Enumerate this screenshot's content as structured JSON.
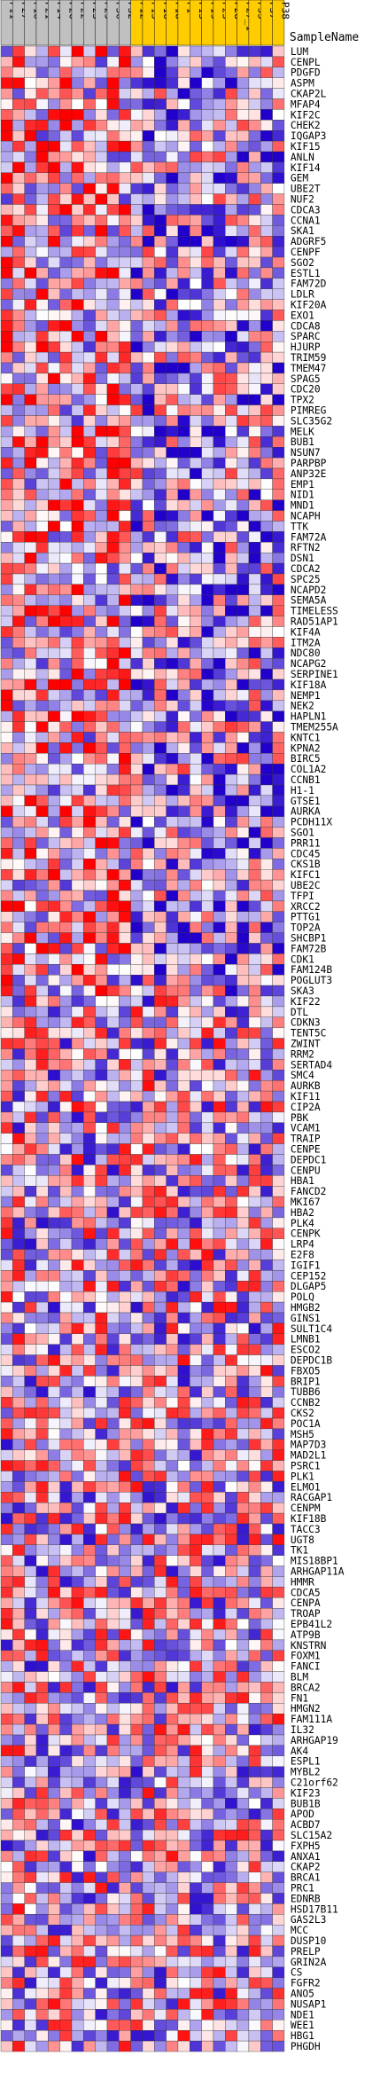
{
  "chart_data": {
    "type": "heatmap",
    "row_header_label": "SampleName",
    "columns": [
      {
        "name": "P11",
        "group": "group-1"
      },
      {
        "name": "P27",
        "group": "group-1"
      },
      {
        "name": "P10",
        "group": "group-1"
      },
      {
        "name": "P21",
        "group": "group-1"
      },
      {
        "name": "P14",
        "group": "group-1"
      },
      {
        "name": "P20",
        "group": "group-1"
      },
      {
        "name": "P22",
        "group": "group-1"
      },
      {
        "name": "P23",
        "group": "group-1"
      },
      {
        "name": "P29",
        "group": "group-1"
      },
      {
        "name": "P30",
        "group": "group-1"
      },
      {
        "name": "P32",
        "group": "group-1"
      },
      {
        "name": "P12",
        "group": "group-2"
      },
      {
        "name": "P15",
        "group": "group-2"
      },
      {
        "name": "P16",
        "group": "group-2"
      },
      {
        "name": "P18",
        "group": "group-2"
      },
      {
        "name": "P1",
        "group": "group-2"
      },
      {
        "name": "P13",
        "group": "group-2"
      },
      {
        "name": "P19",
        "group": "group-2"
      },
      {
        "name": "P25",
        "group": "group-2"
      },
      {
        "name": "P28",
        "group": "group-2"
      },
      {
        "name": "P27_1",
        "group": "group-2"
      },
      {
        "name": "P35",
        "group": "group-2"
      },
      {
        "name": "P37",
        "group": "group-2"
      },
      {
        "name": "P38",
        "group": "group-2"
      }
    ],
    "group_colors": {
      "group-1": "#c0c0c0",
      "group-2": "#ffcc00"
    },
    "color_scale": {
      "low": "#2200cc",
      "mid": "#ffffff",
      "high": "#ff0000",
      "range": [
        -1,
        1
      ]
    },
    "rows": [
      "LUM",
      "CENPL",
      "PDGFD",
      "ASPM",
      "CKAP2L",
      "MFAP4",
      "KIF2C",
      "CHEK2",
      "IQGAP3",
      "KIF15",
      "ANLN",
      "KIF14",
      "GEM",
      "UBE2T",
      "NUF2",
      "CDCA3",
      "CCNA1",
      "SKA1",
      "ADGRF5",
      "CENPF",
      "SGO2",
      "ESTL1",
      "FAM72D",
      "LDLR",
      "KIF20A",
      "EXO1",
      "CDCA8",
      "SPARC",
      "HJURP",
      "TRIM59",
      "TMEM47",
      "SPAG5",
      "CDC20",
      "TPX2",
      "PIMREG",
      "SLC35G2",
      "MELK",
      "BUB1",
      "NSUN7",
      "PARPBP",
      "ANP32E",
      "EMP1",
      "NID1",
      "MND1",
      "NCAPH",
      "TTK",
      "FAM72A",
      "RFTN2",
      "DSN1",
      "CDCA2",
      "SPC25",
      "NCAPD2",
      "SEMA5A",
      "TIMELESS",
      "RAD51AP1",
      "KIF4A",
      "ITM2A",
      "NDC80",
      "NCAPG2",
      "SERPINE1",
      "KIF18A",
      "NEMP1",
      "NEK2",
      "HAPLN1",
      "TMEM255A",
      "KNTC1",
      "KPNA2",
      "BIRC5",
      "COL1A2",
      "CCNB1",
      "H1-1",
      "GTSE1",
      "AURKA",
      "PCDH11X",
      "SGO1",
      "PRR11",
      "CDC45",
      "CKS1B",
      "KIFC1",
      "UBE2C",
      "TFPI",
      "XRCC2",
      "PTTG1",
      "TOP2A",
      "SHCBP1",
      "FAM72B",
      "CDK1",
      "FAM124B",
      "POGLUT3",
      "SKA3",
      "KIF22",
      "DTL",
      "CDKN3",
      "TENT5C",
      "ZWINT",
      "RRM2",
      "SERTAD4",
      "SMC4",
      "AURKB",
      "KIF11",
      "CIP2A",
      "PBK",
      "VCAM1",
      "TRAIP",
      "CENPE",
      "DEPDC1",
      "CENPU",
      "HBA1",
      "FANCD2",
      "MKI67",
      "HBA2",
      "PLK4",
      "CENPK",
      "LRP4",
      "E2F8",
      "IGIF1",
      "CEP152",
      "DLGAP5",
      "POLQ",
      "HMGB2",
      "GINS1",
      "SULT1C4",
      "LMNB1",
      "ESCO2",
      "DEPDC1B",
      "FBXO5",
      "BRIP1",
      "TUBB6",
      "CCNB2",
      "CKS2",
      "POC1A",
      "MSH5",
      "MAP7D3",
      "MAD2L1",
      "PSRC1",
      "PLK1",
      "ELMO1",
      "RACGAP1",
      "CENPM",
      "KIF18B",
      "TACC3",
      "UGT8",
      "TK1",
      "MIS18BP1",
      "ARHGAP11A",
      "HMMR",
      "CDCA5",
      "CENPA",
      "TROAP",
      "EPB41L2",
      "ATP9B",
      "KNSTRN",
      "FOXM1",
      "FANCI",
      "BLM",
      "BRCA2",
      "FN1",
      "HMGN2",
      "FAM111A",
      "IL32",
      "ARHGAP19",
      "AK4",
      "ESPL1",
      "MYBL2",
      "C21orf62",
      "KIF23",
      "BUB1B",
      "APOD",
      "ACBD7",
      "SLC15A2",
      "FXPH5",
      "ANXA1",
      "CKAP2",
      "BRCA1",
      "PRC1",
      "EDNRB",
      "HSD17B11",
      "GAS2L3",
      "MCC",
      "DUSP10",
      "PRELP",
      "GRIN2A",
      "CS",
      "FGFR2",
      "ANO5",
      "NUSAP1",
      "NDE1",
      "WEE1",
      "HBG1",
      "PHGDH"
    ]
  }
}
